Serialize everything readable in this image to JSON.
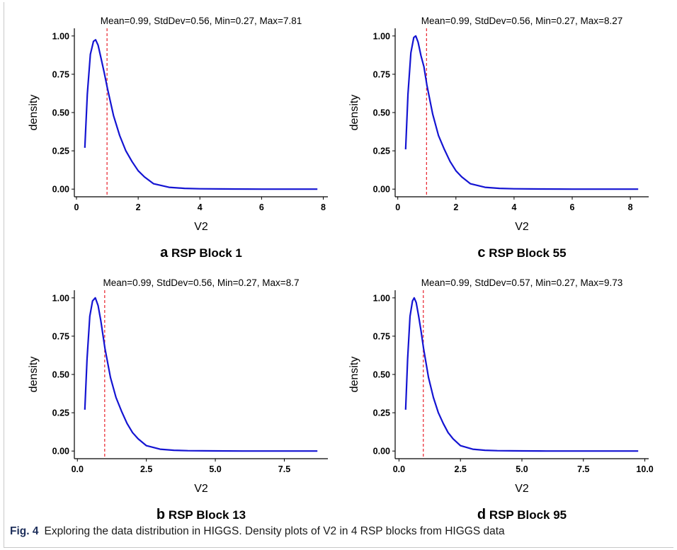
{
  "figure": {
    "caption_label": "Fig. 4",
    "caption_text": "Exploring the data distribution in HIGGS. Density plots of V2 in 4 RSP blocks from HIGGS data"
  },
  "colors": {
    "curve": "#1414d2",
    "mean_line": "#e8202a",
    "axis": "#000000",
    "text": "#000000"
  },
  "chart_data": [
    {
      "panel": "a",
      "panel_title": "RSP Block 1",
      "type": "line",
      "title": "Mean=0.99, StdDev=0.56, Min=0.27, Max=7.81",
      "xlabel": "V2",
      "ylabel": "density",
      "xlim": [
        0.27,
        7.81
      ],
      "ylim": [
        0,
        1
      ],
      "xticks": [
        0,
        2,
        4,
        6,
        8
      ],
      "xtick_labels": [
        "0",
        "2",
        "4",
        "6",
        "8"
      ],
      "yticks": [
        0,
        0.25,
        0.5,
        0.75,
        1
      ],
      "ytick_labels": [
        "0.00",
        "0.25",
        "0.50",
        "0.75",
        "1.00"
      ],
      "mean_line": 0.99,
      "grid": false,
      "x": [
        0.27,
        0.35,
        0.45,
        0.55,
        0.62,
        0.7,
        0.8,
        0.9,
        1.0,
        1.2,
        1.4,
        1.6,
        1.8,
        2.0,
        2.2,
        2.5,
        3.0,
        3.5,
        4.0,
        5.0,
        6.0,
        7.0,
        7.81
      ],
      "y": [
        0.27,
        0.62,
        0.88,
        0.965,
        0.975,
        0.94,
        0.85,
        0.76,
        0.66,
        0.48,
        0.35,
        0.25,
        0.18,
        0.12,
        0.08,
        0.035,
        0.012,
        0.005,
        0.002,
        0.001,
        0.0,
        0.0,
        0.0
      ]
    },
    {
      "panel": "c",
      "panel_title": "RSP Block 55",
      "type": "line",
      "title": "Mean=0.99, StdDev=0.56, Min=0.27, Max=8.27",
      "xlabel": "V2",
      "ylabel": "density",
      "xlim": [
        0.27,
        8.27
      ],
      "ylim": [
        0,
        1
      ],
      "xticks": [
        0,
        2,
        4,
        6,
        8
      ],
      "xtick_labels": [
        "0",
        "2",
        "4",
        "6",
        "8"
      ],
      "yticks": [
        0,
        0.25,
        0.5,
        0.75,
        1
      ],
      "ytick_labels": [
        "0.00",
        "0.25",
        "0.50",
        "0.75",
        "1.00"
      ],
      "mean_line": 0.99,
      "grid": false,
      "x": [
        0.27,
        0.35,
        0.45,
        0.55,
        0.62,
        0.7,
        0.8,
        0.9,
        1.0,
        1.2,
        1.4,
        1.6,
        1.8,
        2.0,
        2.2,
        2.5,
        3.0,
        3.5,
        4.0,
        5.0,
        6.0,
        7.0,
        8.27
      ],
      "y": [
        0.26,
        0.62,
        0.89,
        0.99,
        1.0,
        0.96,
        0.87,
        0.8,
        0.68,
        0.49,
        0.35,
        0.26,
        0.18,
        0.12,
        0.08,
        0.035,
        0.012,
        0.005,
        0.002,
        0.001,
        0.0,
        0.0,
        0.0
      ]
    },
    {
      "panel": "b",
      "panel_title": "RSP Block 13",
      "type": "line",
      "title": "Mean=0.99, StdDev=0.56, Min=0.27, Max=8.7",
      "xlabel": "V2",
      "ylabel": "density",
      "xlim": [
        0.27,
        8.7
      ],
      "ylim": [
        0,
        1
      ],
      "xticks": [
        0,
        2.5,
        5,
        7.5
      ],
      "xtick_labels": [
        "0.0",
        "2.5",
        "5.0",
        "7.5"
      ],
      "yticks": [
        0,
        0.25,
        0.5,
        0.75,
        1
      ],
      "ytick_labels": [
        "0.00",
        "0.25",
        "0.50",
        "0.75",
        "1.00"
      ],
      "mean_line": 0.99,
      "grid": false,
      "x": [
        0.27,
        0.35,
        0.45,
        0.55,
        0.65,
        0.75,
        0.85,
        1.0,
        1.2,
        1.4,
        1.6,
        1.8,
        2.0,
        2.2,
        2.5,
        3.0,
        3.5,
        4.0,
        5.0,
        6.0,
        7.5,
        8.7
      ],
      "y": [
        0.27,
        0.6,
        0.88,
        0.98,
        1.0,
        0.95,
        0.85,
        0.67,
        0.48,
        0.35,
        0.26,
        0.18,
        0.12,
        0.08,
        0.035,
        0.012,
        0.005,
        0.002,
        0.001,
        0.0,
        0.0,
        0.0
      ]
    },
    {
      "panel": "d",
      "panel_title": "RSP Block 95",
      "type": "line",
      "title": "Mean=0.99, StdDev=0.57, Min=0.27, Max=9.73",
      "xlabel": "V2",
      "ylabel": "density",
      "xlim": [
        0.27,
        9.73
      ],
      "ylim": [
        0,
        1
      ],
      "xticks": [
        0,
        2.5,
        5,
        7.5,
        10
      ],
      "xtick_labels": [
        "0.0",
        "2.5",
        "5.0",
        "7.5",
        "10.0"
      ],
      "yticks": [
        0,
        0.25,
        0.5,
        0.75,
        1
      ],
      "ytick_labels": [
        "0.00",
        "0.25",
        "0.50",
        "0.75",
        "1.00"
      ],
      "mean_line": 0.99,
      "grid": false,
      "x": [
        0.27,
        0.35,
        0.45,
        0.55,
        0.62,
        0.7,
        0.8,
        0.9,
        1.0,
        1.2,
        1.4,
        1.6,
        1.8,
        2.0,
        2.2,
        2.5,
        3.0,
        3.5,
        4.0,
        5.0,
        6.0,
        7.5,
        9.73
      ],
      "y": [
        0.27,
        0.6,
        0.88,
        0.98,
        1.0,
        0.97,
        0.88,
        0.78,
        0.67,
        0.48,
        0.35,
        0.25,
        0.18,
        0.12,
        0.08,
        0.035,
        0.012,
        0.005,
        0.002,
        0.001,
        0.0,
        0.0,
        0.0
      ]
    }
  ]
}
